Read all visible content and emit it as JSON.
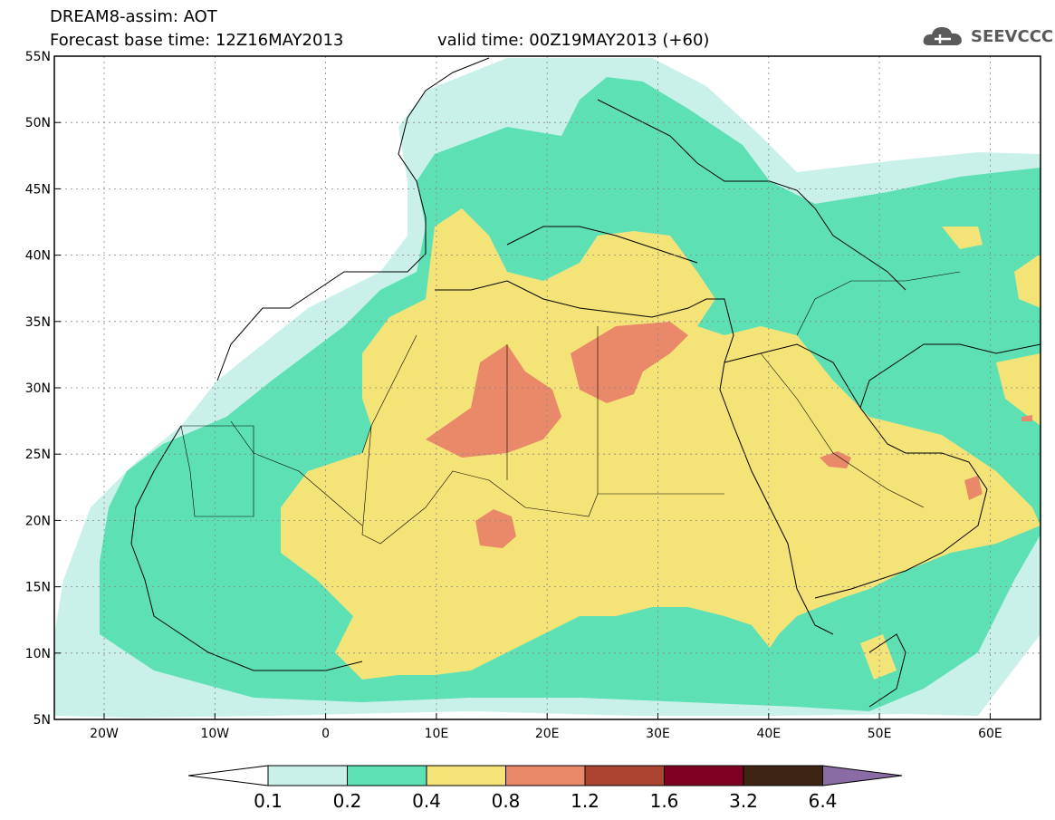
{
  "header": {
    "title": "DREAM8-assim: AOT",
    "base_time": "Forecast base time: 12Z16MAY2013",
    "valid_time": "valid time: 00Z19MAY2013 (+60)"
  },
  "logo": {
    "text": "SEEVCCC",
    "icon": "cloud-icon"
  },
  "axes": {
    "lon_labels": [
      "20W",
      "10W",
      "0",
      "10E",
      "20E",
      "30E",
      "40E",
      "50E",
      "60E"
    ],
    "lat_labels": [
      "55N",
      "50N",
      "45N",
      "40N",
      "35N",
      "30N",
      "25N",
      "20N",
      "15N",
      "10N",
      "5N"
    ]
  },
  "legend": {
    "labels": [
      "0.1",
      "0.2",
      "0.4",
      "0.8",
      "1.2",
      "1.6",
      "3.2",
      "6.4"
    ],
    "colors": [
      "#ffffff",
      "#c9f1ea",
      "#5ee0b5",
      "#f4e377",
      "#e9896a",
      "#ab4431",
      "#7e0022",
      "#3e2413",
      "#8a6ca4"
    ]
  }
}
